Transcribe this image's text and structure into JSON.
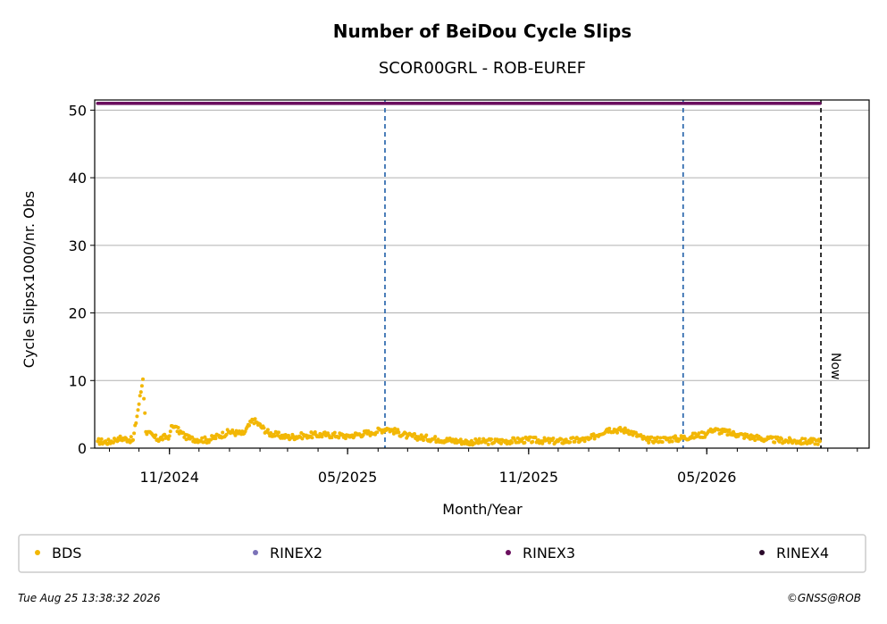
{
  "chart_data": {
    "type": "scatter",
    "title": "Number of BeiDou Cycle Slips",
    "subtitle": "SCOR00GRL - ROB-EUREF",
    "xlabel": "Month/Year",
    "ylabel": "Cycle Slipsx1000/nr. Obs",
    "ylim": [
      0,
      51.5
    ],
    "y_ticks": [
      0,
      10,
      20,
      30,
      40,
      50
    ],
    "x_range": [
      "2024-08-17",
      "2026-10-13"
    ],
    "x_ticks": [
      {
        "date": "2024-11-01",
        "label": "11/2024"
      },
      {
        "date": "2025-05-01",
        "label": "05/2025"
      },
      {
        "date": "2025-11-01",
        "label": "11/2025"
      },
      {
        "date": "2026-05-01",
        "label": "05/2026"
      }
    ],
    "grid": "horizontal",
    "vertical_markers": [
      {
        "date": "2025-06-08",
        "color": "#1f5fa8",
        "style": "dashed"
      },
      {
        "date": "2026-04-07",
        "color": "#1f5fa8",
        "style": "dashed"
      },
      {
        "date": "2026-08-25",
        "color": "#000000",
        "style": "dashed",
        "label": "Now"
      }
    ],
    "legend_position": "bottom",
    "series": [
      {
        "name": "BDS",
        "color": "#f2b705",
        "description_range": [
          "2024-08-20",
          "2026-08-24"
        ],
        "points": [
          {
            "x": "2024-08-20",
            "y": 1.0
          },
          {
            "x": "2024-09-01",
            "y": 0.9
          },
          {
            "x": "2024-09-10",
            "y": 1.5
          },
          {
            "x": "2024-09-25",
            "y": 1.2
          },
          {
            "x": "2024-10-05",
            "y": 10.2
          },
          {
            "x": "2024-10-08",
            "y": 2.4
          },
          {
            "x": "2024-10-20",
            "y": 1.3
          },
          {
            "x": "2024-11-01",
            "y": 1.8
          },
          {
            "x": "2024-11-03",
            "y": 3.3
          },
          {
            "x": "2024-11-06",
            "y": 3.1
          },
          {
            "x": "2024-11-20",
            "y": 1.4
          },
          {
            "x": "2024-12-10",
            "y": 1.2
          },
          {
            "x": "2025-01-01",
            "y": 2.4
          },
          {
            "x": "2025-01-15",
            "y": 2.1
          },
          {
            "x": "2025-01-25",
            "y": 4.2
          },
          {
            "x": "2025-02-10",
            "y": 2.2
          },
          {
            "x": "2025-03-01",
            "y": 1.6
          },
          {
            "x": "2025-03-20",
            "y": 1.9
          },
          {
            "x": "2025-04-10",
            "y": 2.0
          },
          {
            "x": "2025-05-01",
            "y": 1.8
          },
          {
            "x": "2025-05-25",
            "y": 2.3
          },
          {
            "x": "2025-06-10",
            "y": 2.9
          },
          {
            "x": "2025-07-01",
            "y": 1.8
          },
          {
            "x": "2025-08-01",
            "y": 1.3
          },
          {
            "x": "2025-09-01",
            "y": 0.9
          },
          {
            "x": "2025-10-01",
            "y": 1.0
          },
          {
            "x": "2025-11-01",
            "y": 1.2
          },
          {
            "x": "2025-12-01",
            "y": 1.0
          },
          {
            "x": "2026-01-01",
            "y": 1.3
          },
          {
            "x": "2026-01-20",
            "y": 2.8
          },
          {
            "x": "2026-02-10",
            "y": 2.6
          },
          {
            "x": "2026-03-01",
            "y": 1.2
          },
          {
            "x": "2026-04-01",
            "y": 1.4
          },
          {
            "x": "2026-05-01",
            "y": 2.1
          },
          {
            "x": "2026-05-05",
            "y": 2.8
          },
          {
            "x": "2026-06-01",
            "y": 2.0
          },
          {
            "x": "2026-07-01",
            "y": 1.3
          },
          {
            "x": "2026-08-01",
            "y": 1.0
          },
          {
            "x": "2026-08-24",
            "y": 1.0
          }
        ]
      },
      {
        "name": "RINEX2",
        "color": "#7b72b8",
        "points": []
      },
      {
        "name": "RINEX3",
        "color": "#6b0f5e",
        "points": [
          {
            "x": "2024-08-20",
            "y": 51
          },
          {
            "x": "2026-08-24",
            "y": 51
          }
        ]
      },
      {
        "name": "RINEX4",
        "color": "#2a0a2a",
        "points": []
      }
    ]
  },
  "footer": {
    "timestamp": "Tue Aug 25 13:38:32 2026",
    "credit": "©GNSS@ROB"
  }
}
